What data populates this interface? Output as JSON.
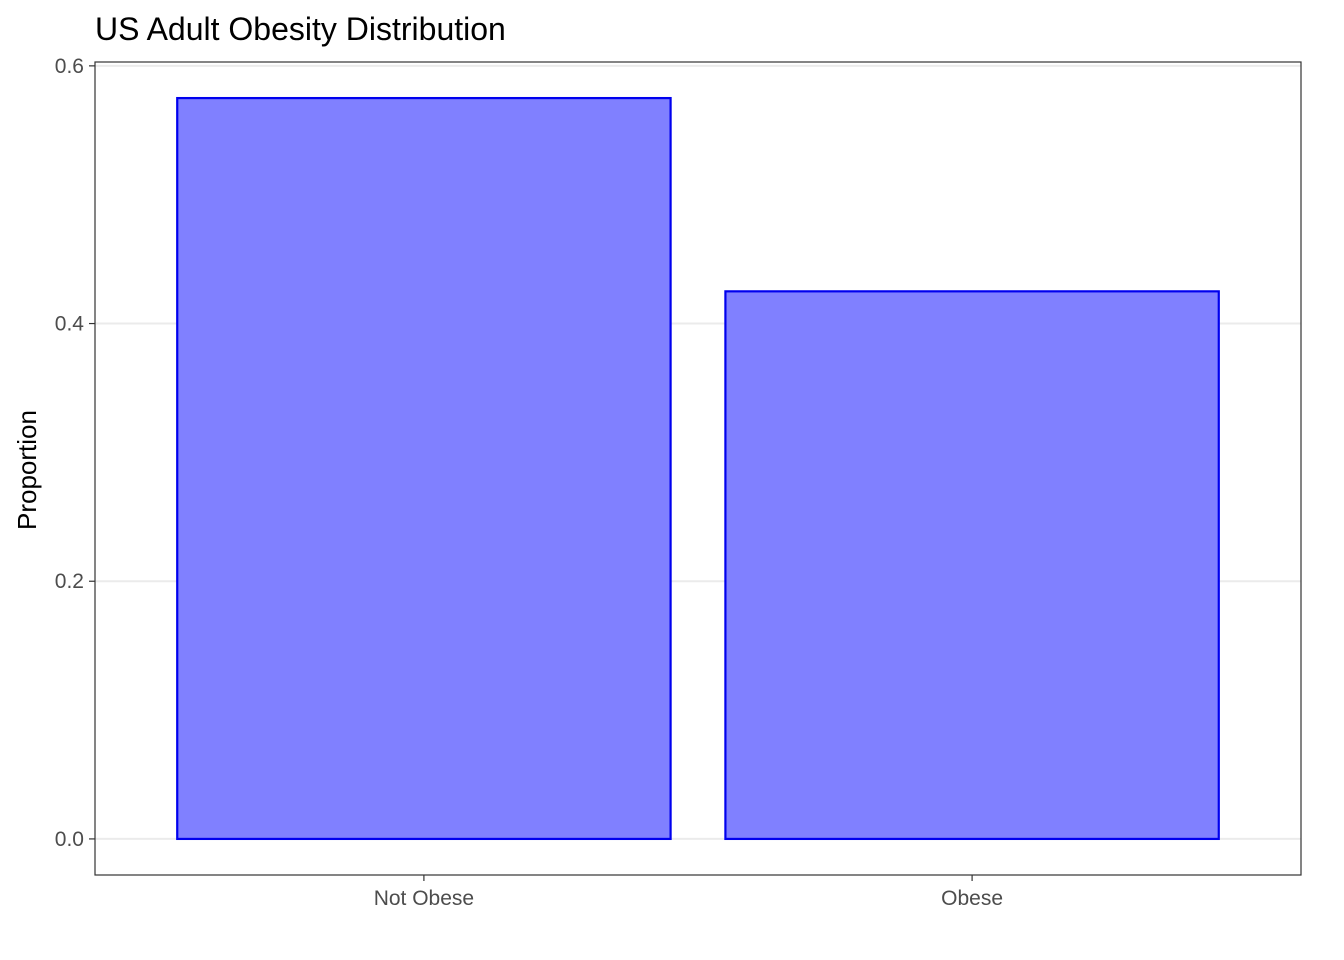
{
  "chart_data": {
    "type": "bar",
    "title": "US Adult Obesity Distribution",
    "xlabel": "",
    "ylabel": "Proportion",
    "categories": [
      "Not Obese",
      "Obese"
    ],
    "values": [
      0.575,
      0.425
    ],
    "ylim": [
      -0.028,
      0.603
    ],
    "yticks": [
      "0.0",
      "0.2",
      "0.4",
      "0.6"
    ],
    "ytick_values": [
      0.0,
      0.2,
      0.4,
      0.6
    ],
    "grid": true,
    "legend": "none",
    "colors": {
      "bar_fill": "#8080ff",
      "bar_stroke": "#0000ee",
      "grid": "#ebebeb",
      "panel_border": "#333333"
    }
  }
}
